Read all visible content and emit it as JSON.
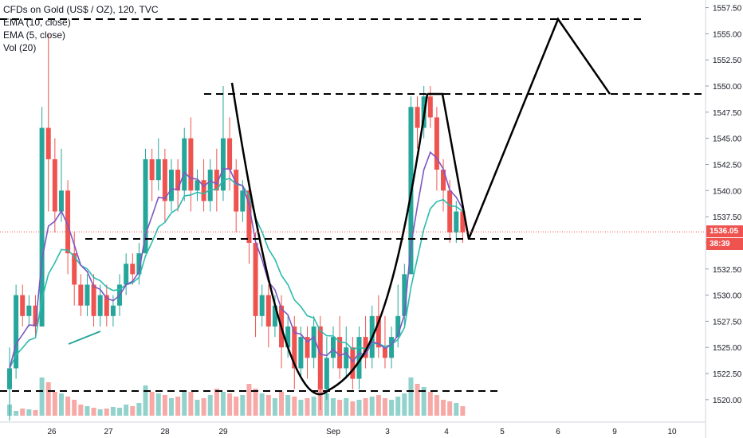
{
  "legend": {
    "title": "CFDs on Gold (US$ / OZ), 120, TVC",
    "ema10": "EMA (10, close)",
    "ema5": "EMA (5, close)",
    "vol": "Vol (20)"
  },
  "price_badge": {
    "value": "1536.05",
    "color": "#ef5350"
  },
  "timer_badge": {
    "value": "38:39",
    "color": "#ef5350"
  },
  "colors": {
    "up": "#26a69a",
    "down": "#ef5350",
    "ema10": "#7e57c2",
    "ema5": "#2bbbad",
    "drawing": "#000000",
    "last_price_line": "#ef5350"
  },
  "chart_data": {
    "type": "candlestick",
    "ylim": [
      1519,
      1558
    ],
    "y_ticks": [
      1520.0,
      1522.5,
      1525.0,
      1527.5,
      1530.0,
      1532.5,
      1535.0,
      1537.5,
      1540.0,
      1542.5,
      1545.0,
      1547.5,
      1550.0,
      1552.5,
      1555.0,
      1557.5
    ],
    "x_ticks": [
      "26",
      "27",
      "28",
      "29",
      "Sep",
      "3",
      "4",
      "5",
      "6",
      "9",
      "10"
    ],
    "last_price": 1536.05,
    "candles": [
      [
        1521,
        1523,
        1518,
        1525
      ],
      [
        1523,
        1530,
        1522,
        1531
      ],
      [
        1530,
        1528,
        1527,
        1531
      ],
      [
        1528,
        1529,
        1527,
        1530
      ],
      [
        1529,
        1527,
        1526,
        1530
      ],
      [
        1527,
        1546,
        1527,
        1548
      ],
      [
        1546,
        1543,
        1538,
        1555
      ],
      [
        1543,
        1538,
        1536,
        1545
      ],
      [
        1538,
        1540,
        1537,
        1544
      ],
      [
        1540,
        1534,
        1532,
        1541
      ],
      [
        1534,
        1531,
        1529,
        1536
      ],
      [
        1531,
        1529,
        1528,
        1532
      ],
      [
        1529,
        1531,
        1528,
        1532
      ],
      [
        1531,
        1528,
        1527,
        1532
      ],
      [
        1528,
        1530,
        1527,
        1531
      ],
      [
        1530,
        1528,
        1527,
        1531
      ],
      [
        1528,
        1529,
        1527,
        1530
      ],
      [
        1529,
        1531,
        1528,
        1532
      ],
      [
        1531,
        1533,
        1530,
        1534
      ],
      [
        1533,
        1532,
        1531,
        1534
      ],
      [
        1532,
        1534,
        1531,
        1535
      ],
      [
        1534,
        1543,
        1534,
        1544
      ],
      [
        1543,
        1541,
        1539,
        1544
      ],
      [
        1541,
        1543,
        1540,
        1545
      ],
      [
        1543,
        1539,
        1537,
        1544
      ],
      [
        1539,
        1542,
        1538,
        1543
      ],
      [
        1542,
        1540,
        1538,
        1543
      ],
      [
        1540,
        1545,
        1539,
        1546
      ],
      [
        1545,
        1540,
        1538,
        1547
      ],
      [
        1540,
        1541,
        1539,
        1542
      ],
      [
        1541,
        1539,
        1538,
        1543
      ],
      [
        1539,
        1542,
        1538,
        1543
      ],
      [
        1542,
        1540,
        1538,
        1544
      ],
      [
        1540,
        1545,
        1539,
        1550
      ],
      [
        1545,
        1542,
        1540,
        1547
      ],
      [
        1542,
        1538,
        1536,
        1543
      ],
      [
        1538,
        1540,
        1537,
        1541
      ],
      [
        1540,
        1535,
        1533,
        1541
      ],
      [
        1535,
        1528,
        1526,
        1536
      ],
      [
        1528,
        1530,
        1527,
        1531
      ],
      [
        1530,
        1527,
        1525,
        1531
      ],
      [
        1527,
        1529,
        1526,
        1530
      ],
      [
        1529,
        1525,
        1523,
        1530
      ],
      [
        1525,
        1527,
        1524,
        1528
      ],
      [
        1527,
        1523,
        1521,
        1528
      ],
      [
        1523,
        1526,
        1522,
        1527
      ],
      [
        1526,
        1524,
        1522,
        1527
      ],
      [
        1524,
        1527,
        1523,
        1528
      ],
      [
        1527,
        1521,
        1519,
        1528
      ],
      [
        1521,
        1524,
        1520,
        1526
      ],
      [
        1524,
        1526,
        1523,
        1527
      ],
      [
        1526,
        1523,
        1522,
        1528
      ],
      [
        1523,
        1525,
        1522,
        1527
      ],
      [
        1525,
        1522,
        1521,
        1526
      ],
      [
        1522,
        1526,
        1521,
        1527
      ],
      [
        1526,
        1524,
        1523,
        1528
      ],
      [
        1524,
        1528,
        1523,
        1529
      ],
      [
        1528,
        1525,
        1524,
        1530
      ],
      [
        1525,
        1524,
        1523,
        1528
      ],
      [
        1524,
        1526,
        1523,
        1527
      ],
      [
        1526,
        1528,
        1525,
        1531
      ],
      [
        1528,
        1532,
        1527,
        1533
      ],
      [
        1532,
        1548,
        1532,
        1549
      ],
      [
        1548,
        1546,
        1544,
        1549
      ],
      [
        1546,
        1549,
        1545,
        1550
      ],
      [
        1549,
        1547,
        1546,
        1550
      ],
      [
        1547,
        1542,
        1540,
        1548
      ],
      [
        1542,
        1540,
        1538,
        1543
      ],
      [
        1540,
        1536,
        1535,
        1541
      ],
      [
        1536,
        1538,
        1535,
        1539
      ],
      [
        1538,
        1536,
        1535,
        1539
      ]
    ],
    "volumes": [
      14,
      6,
      9,
      8,
      7,
      48,
      42,
      30,
      28,
      24,
      20,
      14,
      12,
      10,
      8,
      9,
      11,
      10,
      14,
      12,
      16,
      38,
      30,
      28,
      26,
      22,
      24,
      32,
      30,
      20,
      22,
      26,
      34,
      30,
      28,
      24,
      26,
      40,
      34,
      28,
      26,
      22,
      30,
      26,
      24,
      20,
      22,
      24,
      38,
      28,
      22,
      20,
      22,
      18,
      20,
      22,
      24,
      26,
      22,
      20,
      24,
      28,
      48,
      40,
      36,
      30,
      26,
      20,
      18,
      16,
      12
    ]
  }
}
